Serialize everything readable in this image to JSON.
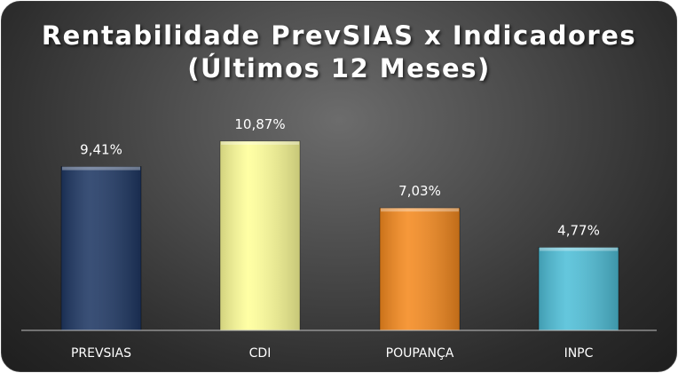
{
  "chart_data": {
    "type": "bar",
    "title": "Rentabilidade PrevSIAS x Indicadores",
    "subtitle": "(Últimos 12 Meses)",
    "categories": [
      "PREVSIAS",
      "CDI",
      "POUPANÇA",
      "INPC"
    ],
    "values": [
      9.41,
      10.87,
      7.03,
      4.77
    ],
    "value_labels": [
      "9,41%",
      "10,87%",
      "7,03%",
      "4,77%"
    ],
    "colors": [
      "#1f3864",
      "#ffff99",
      "#f58a1f",
      "#4fbfd8"
    ],
    "ylim": [
      0,
      12.5
    ],
    "grid": false,
    "legend": "none"
  }
}
